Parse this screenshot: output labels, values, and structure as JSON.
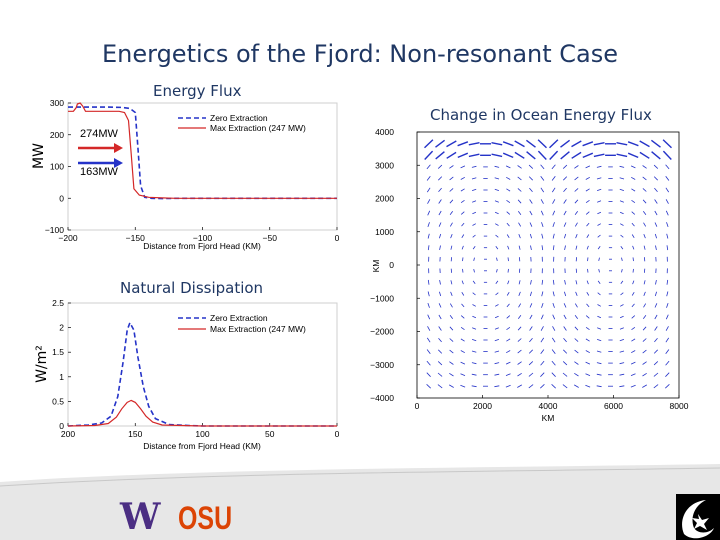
{
  "slide": {
    "title": "Energetics of the Fjord: Non-resonant Case"
  },
  "footer": {
    "logo_w": "W",
    "logo_osu": "OSU"
  },
  "chart_data": [
    {
      "type": "line",
      "title": "Energy Flux",
      "ylabel": "MW",
      "xlabel": "Distance from Fjord Head (KM)",
      "xlim": [
        -200,
        0
      ],
      "ylim": [
        -100,
        300
      ],
      "xticks": [
        "−200",
        "−150",
        "−100",
        "−50",
        "0"
      ],
      "yticks": [
        "−100",
        "0",
        "100",
        "200",
        "300"
      ],
      "legend": "top-right",
      "annotations": [
        "274MW",
        "163MW"
      ],
      "series": [
        {
          "name": "Zero Extraction",
          "color": "#2533c8",
          "dash": true,
          "points": [
            [
              -200,
              287
            ],
            [
              -190,
              287
            ],
            [
              -180,
              287
            ],
            [
              -170,
              287
            ],
            [
              -160,
              286
            ],
            [
              -154,
              283
            ],
            [
              -150,
              270
            ],
            [
              -148,
              160
            ],
            [
              -146,
              40
            ],
            [
              -143,
              3
            ],
            [
              -138,
              0
            ],
            [
              -130,
              -1
            ],
            [
              -120,
              0
            ],
            [
              -100,
              0
            ],
            [
              -50,
              0
            ],
            [
              0,
              0
            ]
          ]
        },
        {
          "name": "Max Extraction (247 MW)",
          "color": "#d42828",
          "dash": false,
          "points": [
            [
              -200,
              274
            ],
            [
              -196,
              274
            ],
            [
              -194,
              285
            ],
            [
              -193,
              297
            ],
            [
              -191,
              300
            ],
            [
              -189,
              290
            ],
            [
              -187,
              274
            ],
            [
              -178,
              274
            ],
            [
              -162,
              274
            ],
            [
              -158,
              270
            ],
            [
              -155,
              245
            ],
            [
              -153,
              140
            ],
            [
              -151,
              30
            ],
            [
              -147,
              10
            ],
            [
              -140,
              3
            ],
            [
              -130,
              1
            ],
            [
              -120,
              0
            ],
            [
              -100,
              0
            ],
            [
              -50,
              0
            ],
            [
              0,
              0
            ]
          ]
        }
      ]
    },
    {
      "type": "line",
      "title": "Natural Dissipation",
      "ylabel": "W/m²",
      "xlabel": "Distance from Fjord Head (KM)",
      "xlim": [
        200,
        0
      ],
      "ylim": [
        0,
        2.5
      ],
      "xticks": [
        "200",
        "150",
        "100",
        "50",
        "0"
      ],
      "yticks": [
        "0",
        "0.5",
        "1",
        "1.5",
        "2",
        "2.5"
      ],
      "legend": "top-right",
      "series": [
        {
          "name": "Zero Extraction",
          "color": "#2533c8",
          "dash": true,
          "points": [
            [
              200,
              0
            ],
            [
              185,
              0.02
            ],
            [
              175,
              0.06
            ],
            [
              168,
              0.2
            ],
            [
              163,
              0.6
            ],
            [
              159,
              1.3
            ],
            [
              156,
              1.95
            ],
            [
              154,
              2.1
            ],
            [
              151,
              1.95
            ],
            [
              148,
              1.4
            ],
            [
              144,
              0.8
            ],
            [
              140,
              0.4
            ],
            [
              135,
              0.15
            ],
            [
              125,
              0.03
            ],
            [
              110,
              0.01
            ],
            [
              100,
              0
            ],
            [
              50,
              0
            ],
            [
              0,
              0
            ]
          ]
        },
        {
          "name": "Max Extraction (247 MW)",
          "color": "#d42828",
          "dash": false,
          "points": [
            [
              200,
              0
            ],
            [
              180,
              0.01
            ],
            [
              170,
              0.05
            ],
            [
              164,
              0.18
            ],
            [
              160,
              0.35
            ],
            [
              156,
              0.48
            ],
            [
              153,
              0.52
            ],
            [
              150,
              0.48
            ],
            [
              146,
              0.35
            ],
            [
              142,
              0.2
            ],
            [
              137,
              0.08
            ],
            [
              130,
              0.02
            ],
            [
              115,
              0.01
            ],
            [
              100,
              0
            ],
            [
              50,
              0
            ],
            [
              0,
              0
            ]
          ]
        }
      ]
    },
    {
      "type": "vector-field",
      "title": "Change in Ocean Energy Flux",
      "ylabel": "KM",
      "xlabel": "KM",
      "xlim": [
        0,
        8000
      ],
      "ylim": [
        -4000,
        4000
      ],
      "xticks": [
        "0",
        "2000",
        "4000",
        "6000",
        "8000"
      ],
      "yticks": [
        "−4000",
        "−3000",
        "−2000",
        "−1000",
        "0",
        "1000",
        "2000",
        "3000",
        "4000"
      ],
      "vector_color": "#2533c8"
    }
  ]
}
